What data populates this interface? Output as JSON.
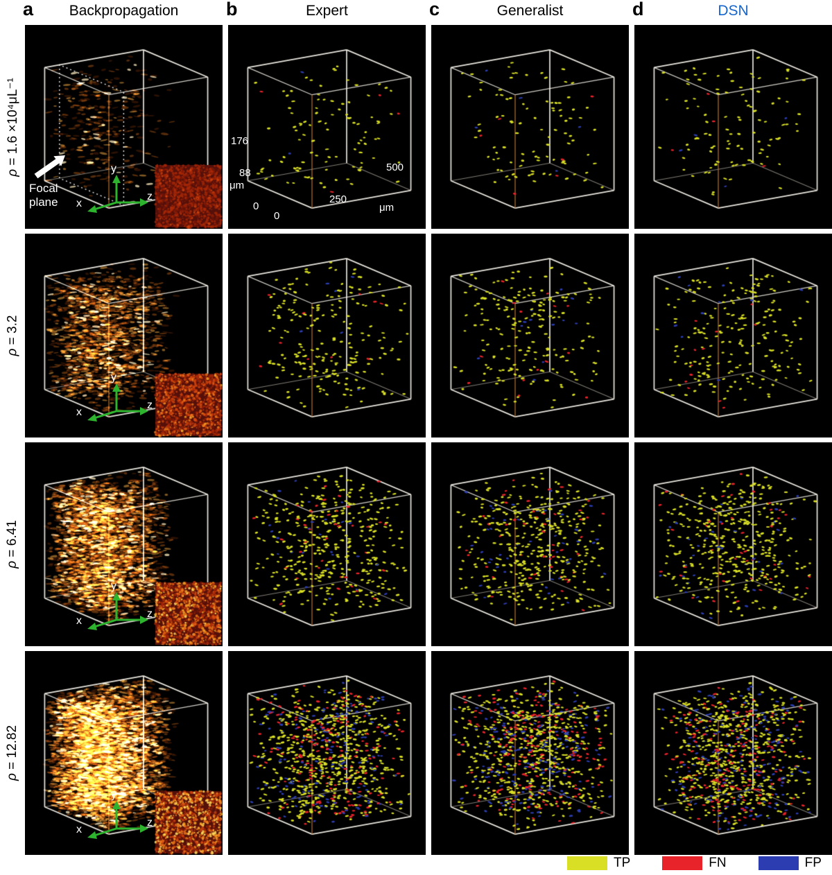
{
  "figure": {
    "header": {
      "columns": [
        {
          "letter": "a",
          "title": "Backpropagation",
          "color": "#000000"
        },
        {
          "letter": "b",
          "title": "Expert",
          "color": "#000000"
        },
        {
          "letter": "c",
          "title": "Generalist",
          "color": "#000000"
        },
        {
          "letter": "d",
          "title": "DSN",
          "color": "#1565cc"
        }
      ]
    },
    "rows": [
      {
        "prefix": "ρ",
        "text": " = 1.6  ×10⁴μL⁻¹",
        "density": 1.6
      },
      {
        "prefix": "ρ",
        "text": " = 3.2",
        "density": 3.2
      },
      {
        "prefix": "ρ",
        "text": " = 6.41",
        "density": 6.41
      },
      {
        "prefix": "ρ",
        "text": " = 12.82",
        "density": 12.82
      }
    ],
    "annotations": {
      "focal_plane_label": "Focal plane",
      "axes": {
        "x": "x",
        "y": "y",
        "z": "z"
      },
      "scale": {
        "v_ticks": [
          "0",
          "88",
          "176"
        ],
        "v_unit": "μm",
        "h_ticks": [
          "0",
          "250",
          "500"
        ],
        "h_unit": "μm"
      }
    },
    "legend": {
      "items": [
        {
          "label": "TP",
          "color": "#d9df25"
        },
        {
          "label": "FN",
          "color": "#e8232a"
        },
        {
          "label": "FP",
          "color": "#2b3db0"
        }
      ]
    },
    "render": {
      "backprop_particles": [
        900,
        3400,
        6500,
        11000
      ],
      "inset_level": [
        0.3,
        0.65,
        0.85,
        1.0
      ],
      "detections": {
        "expert": [
          {
            "tp": 100,
            "fn": 4,
            "fp": 2
          },
          {
            "tp": 210,
            "fn": 10,
            "fp": 6
          },
          {
            "tp": 400,
            "fn": 38,
            "fp": 26
          },
          {
            "tp": 600,
            "fn": 185,
            "fp": 165
          }
        ],
        "generalist": [
          {
            "tp": 95,
            "fn": 6,
            "fp": 5
          },
          {
            "tp": 200,
            "fn": 14,
            "fp": 12
          },
          {
            "tp": 380,
            "fn": 48,
            "fp": 44
          },
          {
            "tp": 560,
            "fn": 210,
            "fp": 205
          }
        ],
        "dsn": [
          {
            "tp": 100,
            "fn": 4,
            "fp": 4
          },
          {
            "tp": 205,
            "fn": 12,
            "fp": 10
          },
          {
            "tp": 390,
            "fn": 42,
            "fp": 38
          },
          {
            "tp": 580,
            "fn": 195,
            "fp": 190
          }
        ]
      }
    }
  }
}
